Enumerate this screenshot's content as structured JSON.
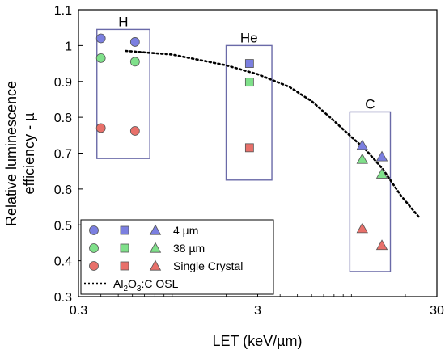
{
  "chart_data": {
    "type": "scatter",
    "title": "",
    "xlabel": "LET (keV/µm)",
    "ylabel_lines": [
      "Relative luminescence",
      "efficiency - µ"
    ],
    "xscale": "log",
    "xlim": [
      0.3,
      30
    ],
    "ylim": [
      0.3,
      1.1
    ],
    "x_ticks": [
      {
        "value": 0.3,
        "label": "0.3"
      },
      {
        "value": 3,
        "label": "3"
      },
      {
        "value": 30,
        "label": "30"
      }
    ],
    "y_ticks": [
      {
        "value": 0.3,
        "label": "0.3"
      },
      {
        "value": 0.4,
        "label": "0.4"
      },
      {
        "value": 0.5,
        "label": "0.5"
      },
      {
        "value": 0.6,
        "label": "0.6"
      },
      {
        "value": 0.7,
        "label": "0.7"
      },
      {
        "value": 0.8,
        "label": "0.8"
      },
      {
        "value": 0.9,
        "label": "0.9"
      },
      {
        "value": 1.0,
        "label": "1"
      },
      {
        "value": 1.1,
        "label": "1.1"
      }
    ],
    "grid": false,
    "legend_position": "bottom-left",
    "legend_rows": [
      {
        "label": "4 µm",
        "color": "#7b7fe0"
      },
      {
        "label": "38 µm",
        "color": "#7fe08a"
      },
      {
        "label": "Single Crystal",
        "color": "#e8706a"
      }
    ],
    "legend_line_label": {
      "prefix": "Al",
      "sub1": "2",
      "mid": "O",
      "sub2": "3",
      "suffix": ":C OSL"
    },
    "groups": [
      {
        "label": "H",
        "box_x": [
          0.38,
          0.75
        ],
        "box_y": [
          0.685,
          1.045
        ]
      },
      {
        "label": "He",
        "box_x": [
          2.0,
          3.6
        ],
        "box_y": [
          0.625,
          1.0
        ]
      },
      {
        "label": "C",
        "box_x": [
          9.8,
          16.5
        ],
        "box_y": [
          0.37,
          0.815
        ]
      }
    ],
    "series": [
      {
        "name": "4 µm",
        "ion": "H",
        "marker": "circle",
        "color": "#7b7fe0",
        "points": [
          [
            0.4,
            1.02
          ],
          [
            0.62,
            1.01
          ]
        ]
      },
      {
        "name": "38 µm",
        "ion": "H",
        "marker": "circle",
        "color": "#7fe08a",
        "points": [
          [
            0.4,
            0.965
          ],
          [
            0.62,
            0.955
          ]
        ]
      },
      {
        "name": "Single Crystal",
        "ion": "H",
        "marker": "circle",
        "color": "#e8706a",
        "points": [
          [
            0.4,
            0.77
          ],
          [
            0.62,
            0.762
          ]
        ]
      },
      {
        "name": "4 µm",
        "ion": "He",
        "marker": "square",
        "color": "#7b7fe0",
        "points": [
          [
            2.7,
            0.95
          ]
        ]
      },
      {
        "name": "38 µm",
        "ion": "He",
        "marker": "square",
        "color": "#7fe08a",
        "points": [
          [
            2.7,
            0.898
          ]
        ]
      },
      {
        "name": "Single Crystal",
        "ion": "He",
        "marker": "square",
        "color": "#e8706a",
        "points": [
          [
            2.7,
            0.715
          ]
        ]
      },
      {
        "name": "4 µm",
        "ion": "C",
        "marker": "triangle",
        "color": "#7b7fe0",
        "points": [
          [
            11.5,
            0.722
          ],
          [
            14.8,
            0.69
          ]
        ]
      },
      {
        "name": "38 µm",
        "ion": "C",
        "marker": "triangle",
        "color": "#7fe08a",
        "points": [
          [
            11.5,
            0.683
          ],
          [
            14.8,
            0.642
          ]
        ]
      },
      {
        "name": "Single Crystal",
        "ion": "C",
        "marker": "triangle",
        "color": "#e8706a",
        "points": [
          [
            11.5,
            0.49
          ],
          [
            14.8,
            0.443
          ]
        ]
      }
    ],
    "curve": {
      "name": "Al2O3:C OSL",
      "style": "dotted",
      "color": "#000000",
      "points": [
        [
          0.55,
          0.985
        ],
        [
          1.0,
          0.975
        ],
        [
          2.0,
          0.945
        ],
        [
          3.0,
          0.92
        ],
        [
          4.5,
          0.885
        ],
        [
          6.0,
          0.845
        ],
        [
          8.0,
          0.79
        ],
        [
          10.0,
          0.745
        ],
        [
          12.0,
          0.71
        ],
        [
          15.0,
          0.655
        ],
        [
          19.0,
          0.58
        ],
        [
          24.0,
          0.52
        ]
      ]
    }
  }
}
